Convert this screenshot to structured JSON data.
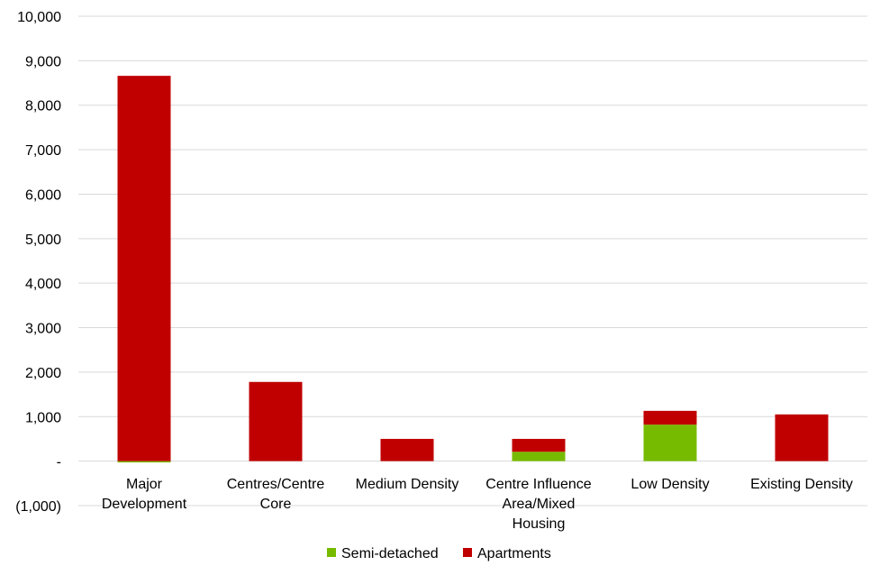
{
  "chart_data": {
    "type": "bar",
    "stacked": true,
    "categories": [
      "Major Development",
      "Centres/Centre Core",
      "Medium Density",
      "Centre Influence Area/Mixed Housing",
      "Low Density",
      "Existing Density"
    ],
    "category_lines": [
      [
        "Major",
        "Development"
      ],
      [
        "Centres/Centre",
        "Core"
      ],
      [
        "Medium Density"
      ],
      [
        "Centre Influence",
        "Area/Mixed",
        "Housing"
      ],
      [
        "Low Density"
      ],
      [
        "Existing Density"
      ]
    ],
    "series": [
      {
        "name": "Semi-detached",
        "color": "#77bb00",
        "values": [
          -30,
          0,
          0,
          210,
          820,
          0
        ]
      },
      {
        "name": "Apartments",
        "color": "#c00000",
        "values": [
          8660,
          1780,
          500,
          290,
          310,
          1050
        ]
      }
    ],
    "ylim": [
      -1000,
      10000
    ],
    "yticks": [
      -1000,
      0,
      1000,
      2000,
      3000,
      4000,
      5000,
      6000,
      7000,
      8000,
      9000,
      10000
    ],
    "ytick_labels": [
      "(1,000)",
      "-",
      "1,000",
      "2,000",
      "3,000",
      "4,000",
      "5,000",
      "6,000",
      "7,000",
      "8,000",
      "9,000",
      "10,000"
    ],
    "grid": true,
    "legend_position": "bottom",
    "title": "",
    "xlabel": "",
    "ylabel": ""
  }
}
